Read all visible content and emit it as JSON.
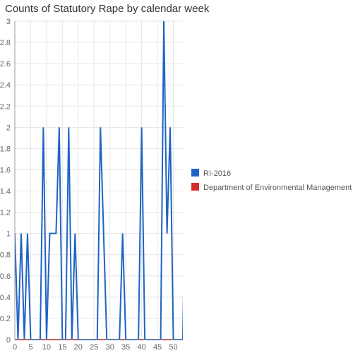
{
  "chart_data": {
    "type": "line",
    "title": "Counts of Statutory Rape by calendar week",
    "xlabel": "",
    "ylabel": "",
    "xlim": [
      0,
      53
    ],
    "ylim": [
      0,
      3
    ],
    "x_ticks": [
      0,
      5,
      10,
      15,
      20,
      25,
      30,
      35,
      40,
      45,
      50
    ],
    "y_ticks": [
      0,
      0.2,
      0.4,
      0.6,
      0.8,
      1,
      1.2,
      1.4,
      1.6,
      1.8,
      2,
      2.2,
      2.4,
      2.6,
      2.8,
      3
    ],
    "x_tick_labels": [
      "0",
      "5",
      "10",
      "15",
      "20",
      "25",
      "30",
      "35",
      "40",
      "45",
      "50"
    ],
    "y_tick_labels": [
      "0",
      "0.2",
      "0.4",
      "0.6",
      "0.8",
      "1",
      "1.2",
      "1.4",
      "1.6",
      "1.8",
      "2",
      "2.2",
      "2.4",
      "2.6",
      "2.8",
      "3"
    ],
    "grid": true,
    "legend_position": "right",
    "series": [
      {
        "name": "RI-2016",
        "color": "#1f64c4",
        "points": [
          [
            0,
            1
          ],
          [
            1,
            0
          ],
          [
            2,
            1
          ],
          [
            3,
            0
          ],
          [
            4,
            1
          ],
          [
            5,
            0
          ],
          [
            8,
            0
          ],
          [
            9,
            2
          ],
          [
            10,
            0
          ],
          [
            11,
            1
          ],
          [
            13,
            1
          ],
          [
            14,
            2
          ],
          [
            15,
            0
          ],
          [
            16,
            0
          ],
          [
            17,
            2
          ],
          [
            18,
            0
          ],
          [
            19,
            1
          ],
          [
            20,
            0
          ],
          [
            26,
            0
          ],
          [
            27,
            2
          ],
          [
            29,
            0
          ],
          [
            33,
            0
          ],
          [
            34,
            1
          ],
          [
            35,
            0
          ],
          [
            39,
            0
          ],
          [
            40,
            2
          ],
          [
            41,
            0
          ],
          [
            46,
            0
          ],
          [
            47,
            3
          ],
          [
            48,
            1
          ],
          [
            49,
            2
          ],
          [
            50,
            0
          ],
          [
            53,
            0
          ],
          [
            54,
            2
          ],
          [
            55,
            0
          ]
        ]
      },
      {
        "name": "Department of Environmental Management",
        "color": "#d42c2c",
        "points": [
          [
            0,
            0
          ],
          [
            53,
            0
          ]
        ]
      }
    ]
  }
}
